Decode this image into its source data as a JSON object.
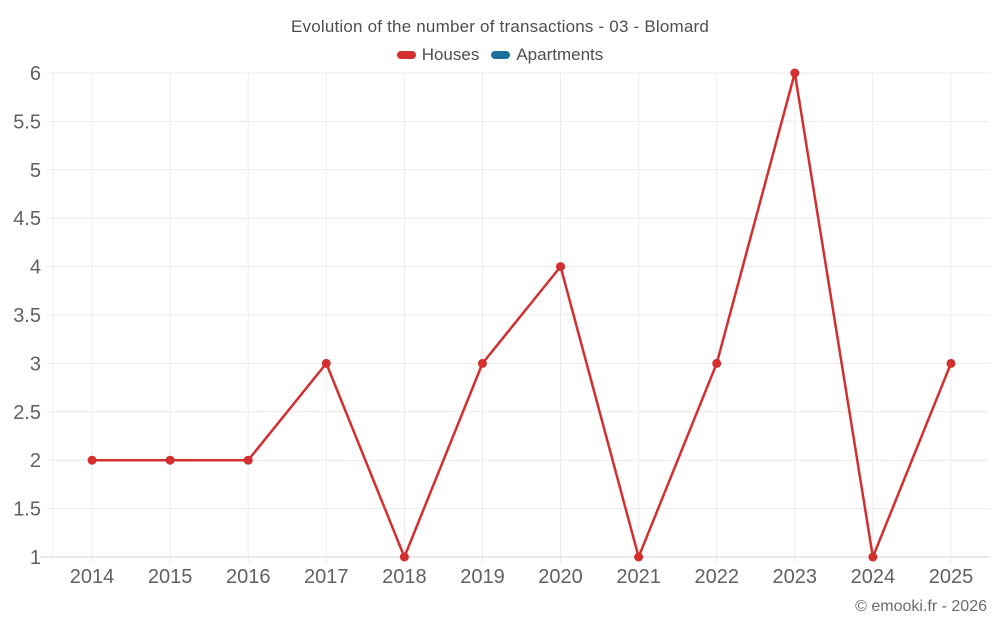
{
  "chart_data": {
    "type": "line",
    "title": "Evolution of the number of transactions - 03 - Blomard",
    "categories": [
      "2014",
      "2015",
      "2016",
      "2017",
      "2018",
      "2019",
      "2020",
      "2021",
      "2022",
      "2023",
      "2024",
      "2025"
    ],
    "series": [
      {
        "name": "Houses",
        "color": "#d32f2f",
        "values": [
          2,
          2,
          2,
          3,
          1,
          3,
          4,
          1,
          3,
          6,
          1,
          3
        ]
      },
      {
        "name": "Apartments",
        "color": "#1a6f9c",
        "values": []
      }
    ],
    "ylim": [
      1,
      6
    ],
    "ytick_step": 0.5,
    "yticks": [
      "1",
      "1.5",
      "2",
      "2.5",
      "3",
      "3.5",
      "4",
      "4.5",
      "5",
      "5.5",
      "6"
    ],
    "grid": true,
    "legend_position": "top",
    "marker": "circle"
  },
  "colors": {
    "grid": "#ececec",
    "axis": "#d4d4d4",
    "tick_label": "#616161",
    "title_text": "#4e4e4e"
  },
  "footer": {
    "copyright": "© emooki.fr - 2026"
  }
}
